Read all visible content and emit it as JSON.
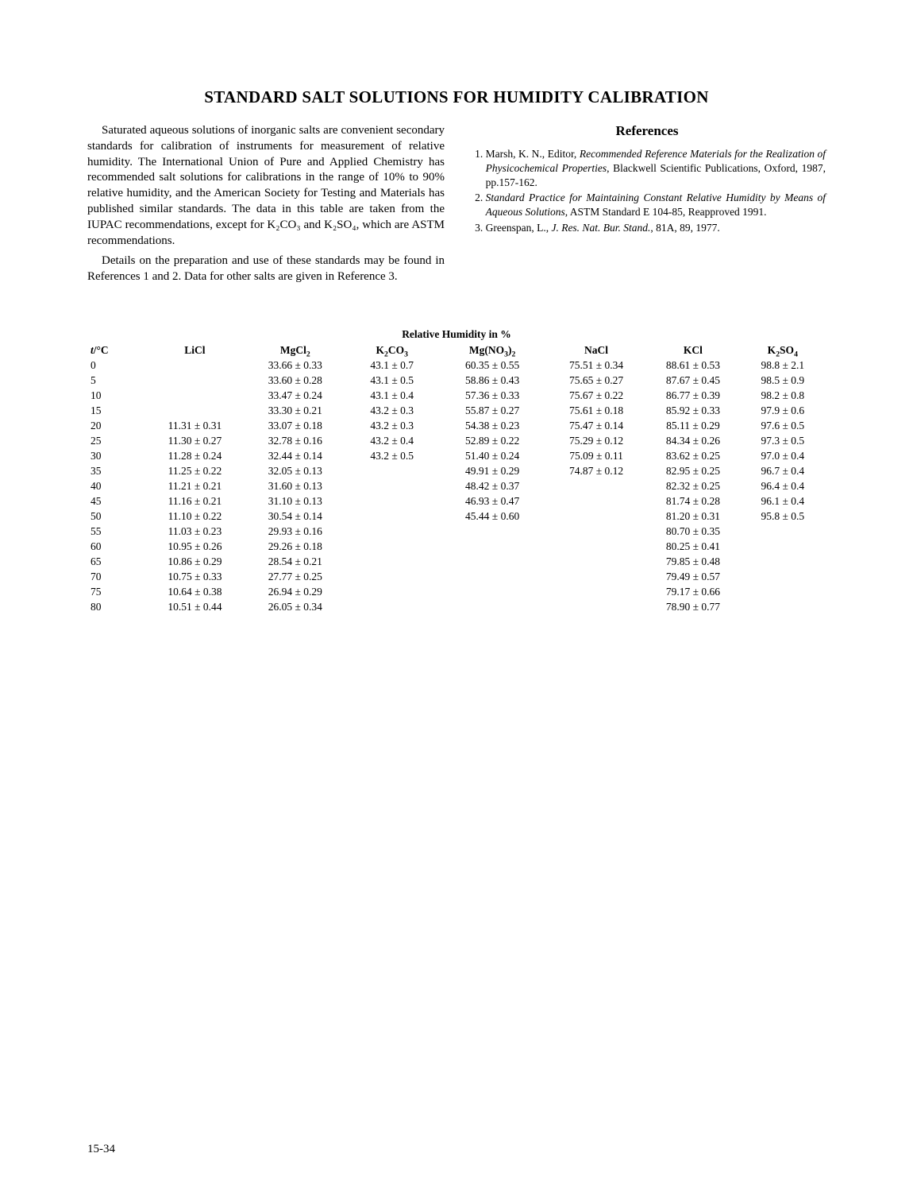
{
  "title": "STANDARD SALT SOLUTIONS FOR HUMIDITY CALIBRATION",
  "para1": "Saturated aqueous solutions of inorganic salts are convenient secondary standards for calibration of instruments for measurement of relative humidity.  The International Union of Pure and Applied Chemistry has recommended salt solutions for calibrations in the range of 10% to 90% relative humidity, and the American Society for Testing and Materials has published similar standards. The data in this table are taken from the IUPAC recommendations, except for K₂CO₃ and K₂SO₄, which are ASTM recommendations.",
  "para2": "Details on the preparation and use of these standards may be found in References 1 and 2. Data for other salts are given in Reference 3.",
  "refs_heading": "References",
  "refs": [
    "Marsh, K. N., Editor, <span class=\"italic\">Recommended Reference Materials for the Realization of Physicochemical Properties</span>, Blackwell Scientific Publications, Oxford, 1987,  pp.157-162.",
    "<span class=\"italic\">Standard Practice for Maintaining Constant Relative Humidity by Means of Aqueous Solutions</span>, ASTM Standard E 104-85, Reapproved 1991.",
    "Greenspan, L.,  <span class=\"italic\">J. Res. Nat. Bur. Stand.</span>, 81A, 89, 1977."
  ],
  "table": {
    "caption": "Relative Humidity in %",
    "col_widths_pct": [
      8,
      14,
      14,
      13,
      15,
      14,
      13,
      12
    ],
    "headers_html": [
      "<span class=\"italic\">t</span>/°C",
      "LiCl",
      "MgCl<sub>2</sub>",
      "K<sub>2</sub>CO<sub>3</sub>",
      "Mg(NO<sub>3</sub>)<sub>2</sub>",
      "NaCl",
      "KCl",
      "K<sub>2</sub>SO<sub>4</sub>"
    ],
    "rows": [
      [
        "0",
        "",
        "33.66 ± 0.33",
        "43.1 ± 0.7",
        "60.35 ± 0.55",
        "75.51 ± 0.34",
        "88.61 ± 0.53",
        "98.8 ± 2.1"
      ],
      [
        "5",
        "",
        "33.60 ± 0.28",
        "43.1 ± 0.5",
        "58.86 ± 0.43",
        "75.65 ± 0.27",
        "87.67 ± 0.45",
        "98.5 ± 0.9"
      ],
      [
        "10",
        "",
        "33.47 ± 0.24",
        "43.1 ± 0.4",
        "57.36 ± 0.33",
        "75.67 ± 0.22",
        "86.77 ± 0.39",
        "98.2 ± 0.8"
      ],
      [
        "15",
        "",
        "33.30 ± 0.21",
        "43.2 ± 0.3",
        "55.87 ± 0.27",
        "75.61 ± 0.18",
        "85.92 ± 0.33",
        "97.9 ± 0.6"
      ],
      [
        "20",
        "11.31 ± 0.31",
        "33.07 ± 0.18",
        "43.2 ± 0.3",
        "54.38 ± 0.23",
        "75.47 ± 0.14",
        "85.11 ± 0.29",
        "97.6 ± 0.5"
      ],
      [
        "25",
        "11.30 ± 0.27",
        "32.78 ± 0.16",
        "43.2 ± 0.4",
        "52.89 ± 0.22",
        "75.29 ± 0.12",
        "84.34 ± 0.26",
        "97.3 ± 0.5"
      ],
      [
        "30",
        "11.28 ± 0.24",
        "32.44 ± 0.14",
        "43.2 ± 0.5",
        "51.40 ± 0.24",
        "75.09 ± 0.11",
        "83.62 ± 0.25",
        "97.0 ± 0.4"
      ],
      [
        "35",
        "11.25 ± 0.22",
        "32.05 ± 0.13",
        "",
        "49.91 ± 0.29",
        "74.87 ± 0.12",
        "82.95 ± 0.25",
        "96.7 ± 0.4"
      ],
      [
        "40",
        "11.21 ± 0.21",
        "31.60 ± 0.13",
        "",
        "48.42 ± 0.37",
        "",
        "82.32 ± 0.25",
        "96.4 ± 0.4"
      ],
      [
        "45",
        "11.16 ± 0.21",
        "31.10 ± 0.13",
        "",
        "46.93 ± 0.47",
        "",
        "81.74 ± 0.28",
        "96.1 ± 0.4"
      ],
      [
        "50",
        "11.10 ± 0.22",
        "30.54 ± 0.14",
        "",
        "45.44 ± 0.60",
        "",
        "81.20 ± 0.31",
        "95.8 ± 0.5"
      ],
      [
        "55",
        "11.03 ± 0.23",
        "29.93 ± 0.16",
        "",
        "",
        "",
        "80.70 ± 0.35",
        ""
      ],
      [
        "60",
        "10.95 ± 0.26",
        "29.26 ± 0.18",
        "",
        "",
        "",
        "80.25 ± 0.41",
        ""
      ],
      [
        "65",
        "10.86 ± 0.29",
        "28.54 ± 0.21",
        "",
        "",
        "",
        "79.85 ± 0.48",
        ""
      ],
      [
        "70",
        "10.75 ± 0.33",
        "27.77 ± 0.25",
        "",
        "",
        "",
        "79.49 ± 0.57",
        ""
      ],
      [
        "75",
        "10.64 ± 0.38",
        "26.94 ± 0.29",
        "",
        "",
        "",
        "79.17 ± 0.66",
        ""
      ],
      [
        "80",
        "10.51 ± 0.44",
        "26.05 ± 0.34",
        "",
        "",
        "",
        "78.90 ± 0.77",
        ""
      ]
    ]
  },
  "page_number": "15-34",
  "colors": {
    "text": "#000000",
    "bg": "#ffffff"
  }
}
